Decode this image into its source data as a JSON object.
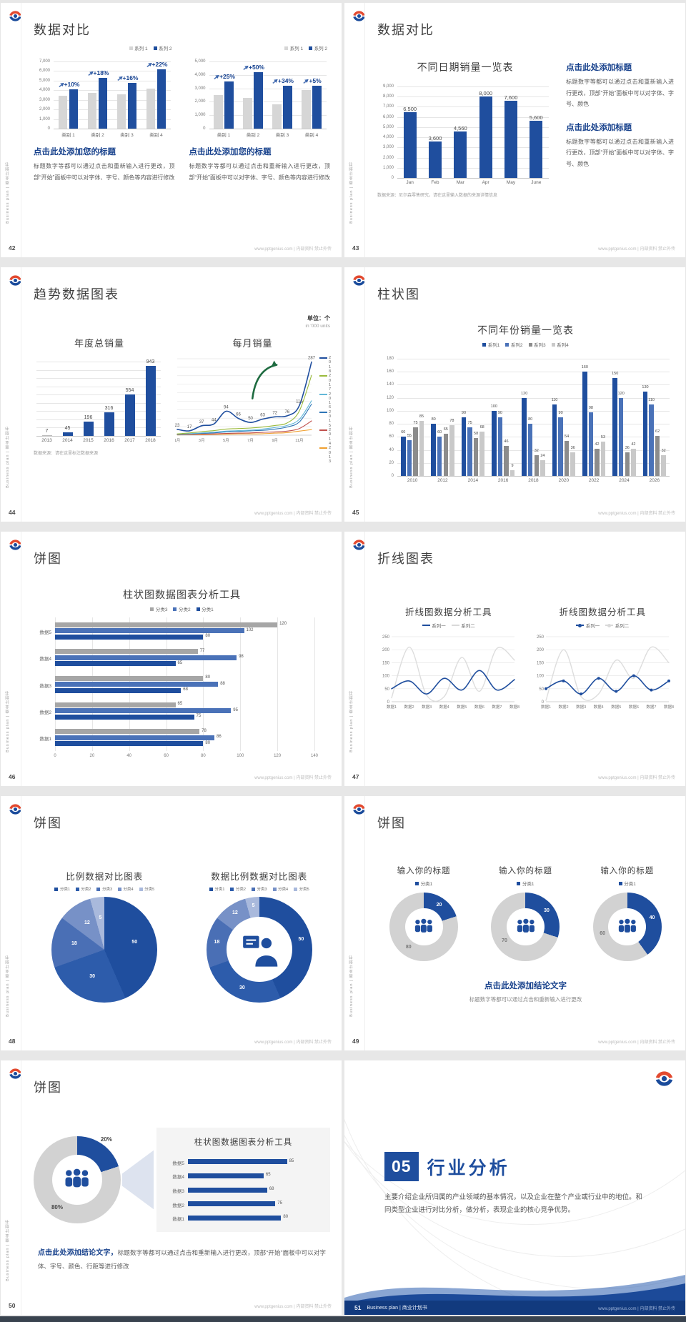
{
  "site": "www.pptgenius.com | 内部资料 禁止外传",
  "rail_text": "Business plan | 商业计划书",
  "colors": {
    "primary_blue": "#1f4e9e",
    "mid_blue": "#4a72b8",
    "light_gray_bar": "#d6d6d6",
    "dark_gray_bar": "#8c8c8c",
    "green_line": "#9aba3c",
    "red_line": "#c0504d",
    "orange_line": "#f0a030",
    "cyan_line": "#62b8d8",
    "steel_line": "#2e75b6",
    "heading_blue": "#17418c",
    "footer_bar": "#123a7e"
  },
  "slides": {
    "s42": {
      "page": "42",
      "title": "数据对比",
      "h": "点击此处添加您的标题",
      "body": "标题数字等都可以通过点击和重新输入进行更改，顶部“开始”面板中可以对字体、字号、颜色等内容进行修改"
    },
    "s43": {
      "page": "43",
      "title": "数据对比",
      "chart_title": "不同日期销量一览表",
      "h": "点击此处添加标题",
      "body": "标题数字等都可以通过点击和重新输入进行更改，顶部“开始”面板中可以对字体、字号、颜色",
      "note": "数据来源：尼尔森零售研究，请在这里输入数据的来源详情信息"
    },
    "s44": {
      "page": "44",
      "title": "趋势数据图表",
      "t1": "年度总销量",
      "t2": "每月销量",
      "unit": "单位：个",
      "unit_en": "in '000 units",
      "note": "数据来源：请在这里标注数据来源"
    },
    "s45": {
      "page": "45",
      "title": "柱状图",
      "chart_title": "不同年份销量一览表"
    },
    "s46": {
      "page": "46",
      "title": "饼图",
      "chart_title": "柱状图数据图表分析工具"
    },
    "s47": {
      "page": "47",
      "title": "折线图表",
      "chart_title": "折线图数据分析工具"
    },
    "s48": {
      "page": "48",
      "title": "饼图",
      "t1": "比例数据对比图表",
      "t2": "数据比例数据对比图表"
    },
    "s49": {
      "page": "49",
      "title": "饼图",
      "col_title": "输入你的标题",
      "h": "点击此处添加结论文字",
      "body": "标题数字等都可以通过点击和重新输入进行更改"
    },
    "s50": {
      "page": "50",
      "title": "饼图",
      "panel_title": "柱状图数据图表分析工具",
      "lead": "点击此处添加结论文字，",
      "body": "标题数字等都可以通过点击和重新输入进行更改，顶部“开始”面板中可以对字体、字号、颜色、行距等进行修改"
    },
    "s51": {
      "page": "51",
      "num": "05",
      "title": "行业分析",
      "caption": "Business plan | 商业计划书",
      "body": "主要介绍企业所归属的产业领域的基本情况，以及企业在整个产业或行业中的地位。和同类型企业进行对比分析，做分析，表现企业的核心竞争优势。"
    }
  },
  "legends": {
    "s42": [
      {
        "label": "系列 1",
        "color": "#d6d6d6",
        "shape": "sq"
      },
      {
        "label": "系列 2",
        "color": "#1f4e9e",
        "shape": "sq"
      }
    ],
    "s44": [
      {
        "label": "2018",
        "color": "#1f4e9e",
        "shape": "line"
      },
      {
        "label": "2017",
        "color": "#9aba3c",
        "shape": "line"
      },
      {
        "label": "2016",
        "color": "#62b8d8",
        "shape": "line"
      },
      {
        "label": "2015",
        "color": "#2e75b6",
        "shape": "line"
      },
      {
        "label": "2014",
        "color": "#c0504d",
        "shape": "line"
      },
      {
        "label": "2013",
        "color": "#f0a030",
        "shape": "line"
      }
    ],
    "s45": [
      {
        "label": "系列1",
        "color": "#1f4e9e",
        "shape": "sq"
      },
      {
        "label": "系列2",
        "color": "#4a72b8",
        "shape": "sq"
      },
      {
        "label": "系列3",
        "color": "#8c8c8c",
        "shape": "sq"
      },
      {
        "label": "系列4",
        "color": "#c9c9c9",
        "shape": "sq"
      }
    ],
    "s46": [
      {
        "label": "分类3",
        "color": "#a6a6a6",
        "shape": "sq"
      },
      {
        "label": "分类2",
        "color": "#4a72b8",
        "shape": "sq"
      },
      {
        "label": "分类1",
        "color": "#1f4e9e",
        "shape": "sq"
      }
    ],
    "s47a": [
      {
        "label": "系列一",
        "color": "#1f4e9e",
        "shape": "line"
      },
      {
        "label": "系列二",
        "color": "#d9d9d9",
        "shape": "line"
      }
    ],
    "s47b": [
      {
        "label": "系列一",
        "color": "#1f4e9e",
        "shape": "linedot"
      },
      {
        "label": "系列二",
        "color": "#d9d9d9",
        "shape": "linedot"
      }
    ],
    "s48": [
      {
        "label": "分类1",
        "color": "#1f4e9e",
        "shape": "sq"
      },
      {
        "label": "分类2",
        "color": "#2d5cab",
        "shape": "sq"
      },
      {
        "label": "分类3",
        "color": "#4a6fb5",
        "shape": "sq"
      },
      {
        "label": "分类4",
        "color": "#7791c7",
        "shape": "sq"
      },
      {
        "label": "分类5",
        "color": "#a9b9dc",
        "shape": "sq"
      }
    ],
    "s49": [
      {
        "label": "分类1",
        "color": "#1f4e9e",
        "shape": "sq"
      }
    ]
  },
  "chart_data": {
    "s42a": {
      "type": "vbar",
      "ymax": 7000,
      "ystep": 1000,
      "cats": [
        "类别 1",
        "类别 2",
        "类别 3",
        "类别 4"
      ],
      "ann": [
        "+10%",
        "+18%",
        "+16%",
        "+22%"
      ],
      "series": [
        {
          "name": "系列 1",
          "color": "#d6d6d6",
          "vals": [
            3400,
            3700,
            3600,
            4200
          ]
        },
        {
          "name": "系列 2",
          "color": "#1f4e9e",
          "vals": [
            4100,
            5300,
            4800,
            6200
          ]
        }
      ]
    },
    "s42b": {
      "type": "vbar",
      "ymax": 5000,
      "ystep": 1000,
      "cats": [
        "类别 1",
        "类别 2",
        "类别 3",
        "类别 4"
      ],
      "ann": [
        "+25%",
        "+50%",
        "+34%",
        "+5%"
      ],
      "series": [
        {
          "name": "系列 1",
          "color": "#d6d6d6",
          "vals": [
            2500,
            2300,
            1800,
            2900
          ]
        },
        {
          "name": "系列 2",
          "color": "#1f4e9e",
          "vals": [
            3500,
            4200,
            3200,
            3200
          ]
        }
      ]
    },
    "s43": {
      "type": "vbar",
      "ymax": 9000,
      "ystep": 1000,
      "bw": 18,
      "ls": 7.5,
      "cats": [
        "Jan",
        "Feb",
        "Mar",
        "Apr",
        "May",
        "June"
      ],
      "series": [
        {
          "name": "销量",
          "color": "#1f4e9e",
          "vals": [
            6500,
            3600,
            4560,
            8000,
            7600,
            5600
          ],
          "labels": true,
          "fmt": true
        }
      ]
    },
    "s44a": {
      "type": "vbar",
      "ymax": 1000,
      "grid": 9,
      "showY": false,
      "ls": 7,
      "cats": [
        "2013",
        "2014",
        "2015",
        "2016",
        "2017",
        "2018"
      ],
      "series": [
        {
          "name": "年度总销量",
          "color": "#1f4e9e",
          "firstGray": true,
          "vals": [
            7,
            45,
            196,
            316,
            554,
            943
          ],
          "labels": true
        }
      ]
    },
    "s44b": {
      "type": "line",
      "ymax": 300,
      "grid": 9,
      "showY": false,
      "arrow": true,
      "cats": [
        "1月",
        "",
        "3月",
        "",
        "5月",
        "",
        "7月",
        "",
        "9月",
        "",
        "11月",
        ""
      ],
      "series": [
        {
          "name": "2018",
          "color": "#1f4e9e",
          "w": 1.6,
          "labels": true,
          "vals": [
            23,
            17,
            37,
            44,
            94,
            66,
            50,
            63,
            72,
            76,
            116,
            287
          ]
        },
        {
          "name": "2017",
          "color": "#9aba3c",
          "w": 1.1,
          "vals": [
            5,
            9,
            14,
            18,
            24,
            26,
            28,
            32,
            38,
            48,
            95,
            235
          ]
        },
        {
          "name": "2016",
          "color": "#62b8d8",
          "w": 1.1,
          "vals": [
            4,
            6,
            9,
            12,
            16,
            18,
            20,
            24,
            30,
            38,
            62,
            135
          ]
        },
        {
          "name": "2015",
          "color": "#2e75b6",
          "w": 1.1,
          "vals": [
            3,
            5,
            7,
            9,
            13,
            15,
            17,
            19,
            24,
            32,
            52,
            122
          ]
        },
        {
          "name": "2014",
          "color": "#c0504d",
          "w": 1.1,
          "vals": [
            2,
            3,
            4,
            5,
            7,
            8,
            9,
            11,
            13,
            16,
            26,
            56
          ]
        },
        {
          "name": "2013",
          "color": "#f0a030",
          "w": 1.1,
          "vals": [
            1,
            2,
            2,
            3,
            4,
            5,
            5,
            6,
            8,
            10,
            16,
            22
          ]
        }
      ]
    },
    "s45": {
      "type": "vbar",
      "ymax": 180,
      "ystep": 20,
      "ls": 5.5,
      "cats": [
        "2010",
        "2012",
        "2014",
        "2016",
        "2018",
        "2020",
        "2022",
        "2024",
        "2026"
      ],
      "series": [
        {
          "name": "系列1",
          "color": "#1f4e9e",
          "vals": [
            60,
            80,
            90,
            100,
            120,
            110,
            160,
            150,
            130
          ],
          "labels": true
        },
        {
          "name": "系列2",
          "color": "#4a72b8",
          "vals": [
            55,
            60,
            75,
            90,
            80,
            90,
            98,
            120,
            110
          ],
          "labels": true
        },
        {
          "name": "系列3",
          "color": "#8c8c8c",
          "vals": [
            75,
            65,
            58,
            46,
            32,
            54,
            42,
            36,
            62
          ],
          "labels": true
        },
        {
          "name": "系列4",
          "color": "#c9c9c9",
          "vals": [
            85,
            78,
            68,
            9,
            24,
            36,
            53,
            42,
            32
          ],
          "labels": true
        }
      ]
    },
    "s46": {
      "type": "hbar",
      "xmax": 140,
      "xstep": 20,
      "rows": [
        "数据5",
        "数据4",
        "数据3",
        "数据2",
        "数据1"
      ],
      "series": [
        {
          "name": "分类3",
          "color": "#a6a6a6",
          "vals": [
            120,
            77,
            80,
            65,
            78
          ]
        },
        {
          "name": "分类2",
          "color": "#4a72b8",
          "vals": [
            102,
            98,
            88,
            95,
            86
          ]
        },
        {
          "name": "分类1",
          "color": "#1f4e9e",
          "vals": [
            80,
            65,
            68,
            75,
            80
          ]
        }
      ]
    },
    "s47a": {
      "type": "line",
      "ymax": 250,
      "ystep": 50,
      "cats": [
        "数据1",
        "数据2",
        "数据3",
        "数据4",
        "数据5",
        "数据6",
        "数据7",
        "数据8"
      ],
      "series": [
        {
          "name": "系列一",
          "color": "#1f4e9e",
          "w": 1.6,
          "vals": [
            50,
            80,
            30,
            90,
            45,
            120,
            45,
            85
          ]
        },
        {
          "name": "系列二",
          "color": "#dddddd",
          "w": 1.4,
          "vals": [
            15,
            210,
            25,
            20,
            170,
            40,
            205,
            160
          ]
        }
      ]
    },
    "s47b": {
      "type": "line",
      "ymax": 250,
      "ystep": 50,
      "cats": [
        "数据1",
        "数据2",
        "数据3",
        "数据4",
        "数据5",
        "数据6",
        "数据7",
        "数据8"
      ],
      "series": [
        {
          "name": "系列一",
          "color": "#1f4e9e",
          "w": 1.6,
          "dots": true,
          "vals": [
            50,
            80,
            30,
            90,
            40,
            100,
            45,
            80
          ]
        },
        {
          "name": "系列二",
          "color": "#dddddd",
          "w": 1.4,
          "vals": [
            5,
            200,
            20,
            30,
            160,
            90,
            210,
            150
          ]
        }
      ]
    },
    "s48a": {
      "type": "pie",
      "values": [
        50,
        30,
        18,
        12,
        5
      ],
      "labels": [
        "50",
        "30",
        "18",
        "12",
        "5"
      ],
      "labelR": 0.58,
      "colors": [
        "#1f4e9e",
        "#2d5cab",
        "#4a6fb5",
        "#7791c7",
        "#a9b9dc"
      ]
    },
    "s48b": {
      "type": "pie",
      "values": [
        50,
        30,
        18,
        12,
        5
      ],
      "labels": [
        "50",
        "30",
        "18",
        "12",
        "5"
      ],
      "labelR": 0.81,
      "colors": [
        "#1f4e9e",
        "#2d5cab",
        "#4a6fb5",
        "#7791c7",
        "#a9b9dc"
      ],
      "hole": 0.62,
      "icon": "presenter"
    },
    "s49a": {
      "type": "pie",
      "values": [
        20,
        80
      ],
      "labels": [
        "20",
        "80"
      ],
      "colors": [
        "#1f4e9e",
        "#d2d2d2"
      ],
      "hole": 0.55,
      "icon": "people",
      "labelR": 0.76,
      "labelColors": [
        "#ffffff",
        "#777777"
      ]
    },
    "s49b": {
      "type": "pie",
      "values": [
        30,
        70
      ],
      "labels": [
        "30",
        "70"
      ],
      "colors": [
        "#1f4e9e",
        "#d2d2d2"
      ],
      "hole": 0.55,
      "icon": "people",
      "labelR": 0.76,
      "labelColors": [
        "#ffffff",
        "#777777"
      ]
    },
    "s49c": {
      "type": "pie",
      "values": [
        40,
        60
      ],
      "labels": [
        "40",
        "60"
      ],
      "colors": [
        "#1f4e9e",
        "#d2d2d2"
      ],
      "hole": 0.55,
      "icon": "people",
      "labelR": 0.76,
      "labelColors": [
        "#ffffff",
        "#777777"
      ]
    },
    "s50": {
      "type": "pie",
      "values": [
        20,
        80
      ],
      "labels": [
        "20%",
        "80%"
      ],
      "colors": [
        "#1f4e9e",
        "#d2d2d2"
      ],
      "hole": 0.58,
      "icon": "people",
      "labelRs": [
        1.14,
        0.78
      ],
      "labelColors": [
        "#444444",
        "#444444"
      ],
      "ls": 8
    },
    "s50bars": {
      "type": "hbar",
      "xmax": 100,
      "noAxis": true,
      "rows": [
        "数据5",
        "数据4",
        "数据3",
        "数据2",
        "数据1"
      ],
      "series": [
        {
          "name": "数据",
          "color": "#1f4e9e",
          "vals": [
            85,
            65,
            68,
            75,
            80
          ]
        }
      ]
    }
  }
}
